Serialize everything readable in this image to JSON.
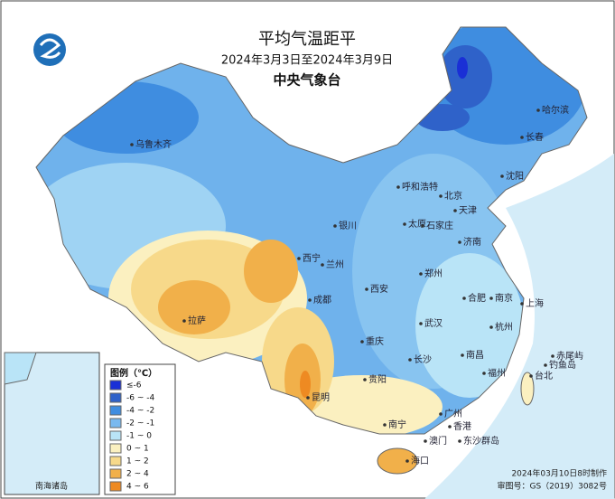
{
  "header": {
    "title": "平均气温距平",
    "subtitle": "2024年3月3日至2024年3月9日",
    "agency": "中央气象台"
  },
  "legend": {
    "title": "图例（℃）",
    "items": [
      {
        "label": "≤-6",
        "color": "#1a2fd6"
      },
      {
        "label": "-6 ~ -4",
        "color": "#2f62c9"
      },
      {
        "label": "-4 ~ -2",
        "color": "#3f8de0"
      },
      {
        "label": "-2 ~ -1",
        "color": "#79b9ef"
      },
      {
        "label": "-1 ~ 0",
        "color": "#b9e4f7"
      },
      {
        "label": "0 ~ 1",
        "color": "#fbf0c0"
      },
      {
        "label": "1 ~ 2",
        "color": "#f7d98a"
      },
      {
        "label": "2 ~ 4",
        "color": "#f1b04a"
      },
      {
        "label": "4 ~ 6",
        "color": "#ee8a22"
      }
    ]
  },
  "cities": [
    "哈尔滨",
    "长春",
    "沈阳",
    "乌鲁木齐",
    "呼和浩特",
    "北京",
    "天津",
    "银川",
    "太原",
    "石家庄",
    "济南",
    "西宁",
    "兰州",
    "西安",
    "郑州",
    "合肥",
    "南京",
    "上海",
    "拉萨",
    "成都",
    "武汉",
    "杭州",
    "重庆",
    "长沙",
    "南昌",
    "贵阳",
    "福州",
    "台北",
    "昆明",
    "广州",
    "南宁",
    "香港",
    "澳门",
    "海口",
    "赤尾屿",
    "钓鱼岛",
    "东沙群岛"
  ],
  "inset": {
    "label": "南海诸岛"
  },
  "footer": {
    "made": "2024年03月10日8时制作",
    "approval": "审图号：GS（2019）3082号"
  }
}
